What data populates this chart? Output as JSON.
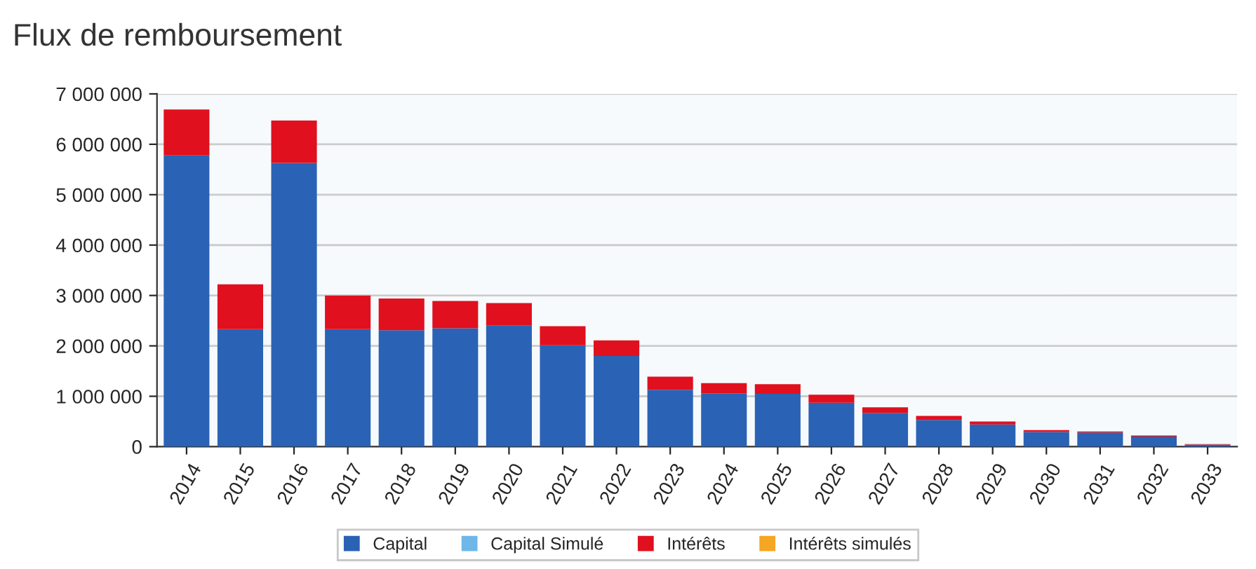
{
  "chart_data": {
    "type": "bar",
    "title": "Flux de remboursement",
    "stacked": true,
    "categories": [
      "2014",
      "2015",
      "2016",
      "2017",
      "2018",
      "2019",
      "2020",
      "2021",
      "2022",
      "2023",
      "2024",
      "2025",
      "2026",
      "2027",
      "2028",
      "2029",
      "2030",
      "2031",
      "2032",
      "2033"
    ],
    "series": [
      {
        "name": "Capital",
        "color": "#2a62b5",
        "values": [
          5780000,
          2330000,
          5630000,
          2330000,
          2310000,
          2350000,
          2400000,
          2010000,
          1800000,
          1130000,
          1060000,
          1050000,
          870000,
          670000,
          530000,
          440000,
          290000,
          280000,
          200000,
          40000
        ]
      },
      {
        "name": "Capital Simulé",
        "color": "#6fb7e9",
        "values": [
          null,
          null,
          null,
          null,
          null,
          null,
          null,
          null,
          null,
          null,
          null,
          null,
          null,
          null,
          null,
          null,
          null,
          null,
          null,
          null
        ]
      },
      {
        "name": "Intérêts",
        "color": "#e0101e",
        "values": [
          910000,
          890000,
          840000,
          670000,
          630000,
          540000,
          450000,
          380000,
          310000,
          260000,
          200000,
          190000,
          160000,
          110000,
          80000,
          60000,
          40000,
          20000,
          20000,
          10000
        ]
      },
      {
        "name": "Intérêts simulés",
        "color": "#f5a623",
        "values": [
          null,
          null,
          null,
          null,
          null,
          null,
          null,
          null,
          null,
          null,
          null,
          null,
          null,
          null,
          null,
          null,
          null,
          null,
          null,
          null
        ]
      }
    ],
    "ylim": [
      0,
      7000000
    ],
    "yticks": [
      {
        "value": 0,
        "label": "0"
      },
      {
        "value": 1000000,
        "label": "1 000 000"
      },
      {
        "value": 2000000,
        "label": "2 000 000"
      },
      {
        "value": 3000000,
        "label": "3 000 000"
      },
      {
        "value": 4000000,
        "label": "4 000 000"
      },
      {
        "value": 5000000,
        "label": "5 000 000"
      },
      {
        "value": 6000000,
        "label": "6 000 000"
      },
      {
        "value": 7000000,
        "label": "7 000 000"
      }
    ],
    "grid": "y",
    "legend": "bottom"
  }
}
